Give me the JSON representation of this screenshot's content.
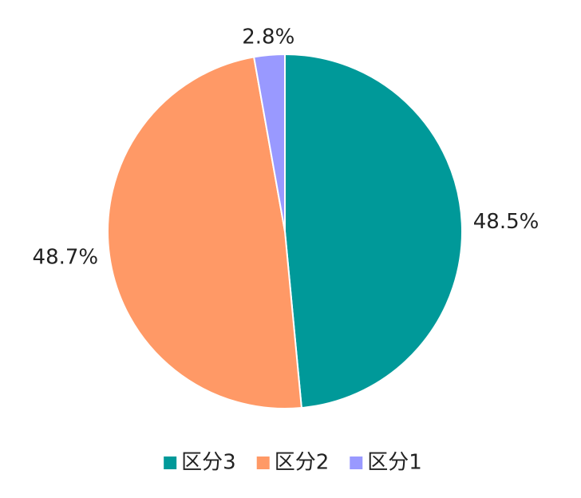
{
  "chart_data": {
    "type": "pie",
    "categories": [
      "区分3",
      "区分2",
      "区分1"
    ],
    "values": [
      48.5,
      48.7,
      2.8
    ],
    "value_labels": [
      "48.5%",
      "48.7%",
      "2.8%"
    ],
    "colors": [
      "#009999",
      "#ff9966",
      "#9999ff"
    ],
    "legend": "bottom"
  }
}
